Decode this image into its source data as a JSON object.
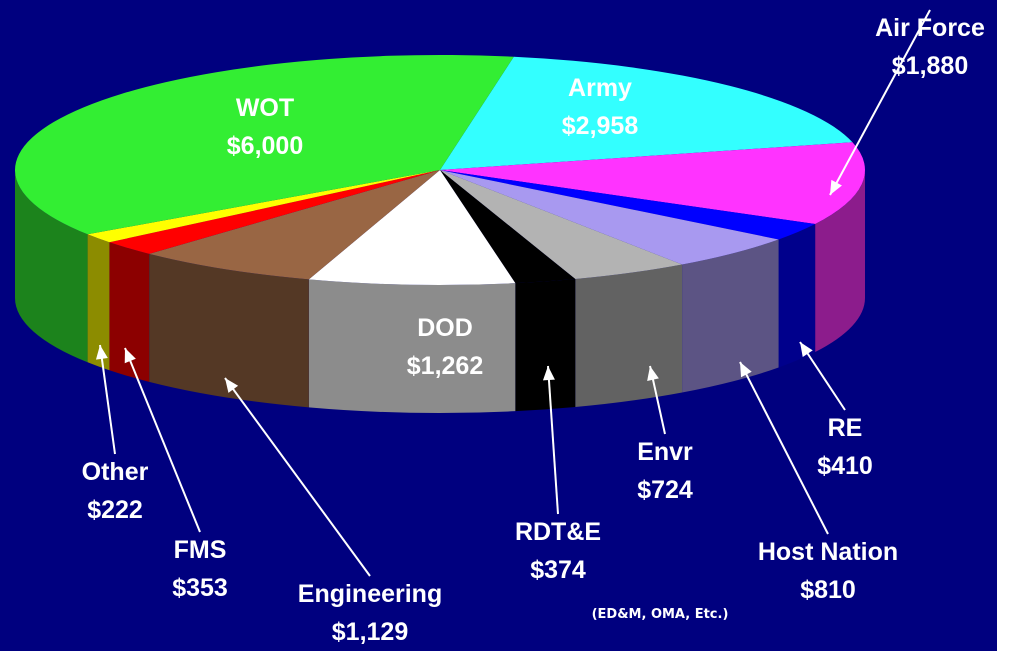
{
  "chart_data": {
    "type": "pie3d",
    "categories": [
      "Army",
      "Air Force",
      "RE",
      "Host Nation",
      "Envr",
      "RDT&E",
      "DOD",
      "Engineering",
      "FMS",
      "Other",
      "WOT"
    ],
    "values": [
      2958,
      1880,
      410,
      810,
      724,
      374,
      1262,
      1129,
      353,
      222,
      6000
    ],
    "value_labels": [
      "$2,958",
      "$1,880",
      "$410",
      "$810",
      "$724",
      "$374",
      "$1,262",
      "$1,129",
      "$353",
      "$222",
      "$6,000"
    ],
    "colors": [
      "#33ffff",
      "#ff33ff",
      "#0000ff",
      "#a899f0",
      "#b3b3b3",
      "#000000",
      "#ffffff",
      "#996644",
      "#ff0000",
      "#ffff00",
      "#33ee33"
    ],
    "annotation": "(ED&M, OMA, Etc.)"
  }
}
